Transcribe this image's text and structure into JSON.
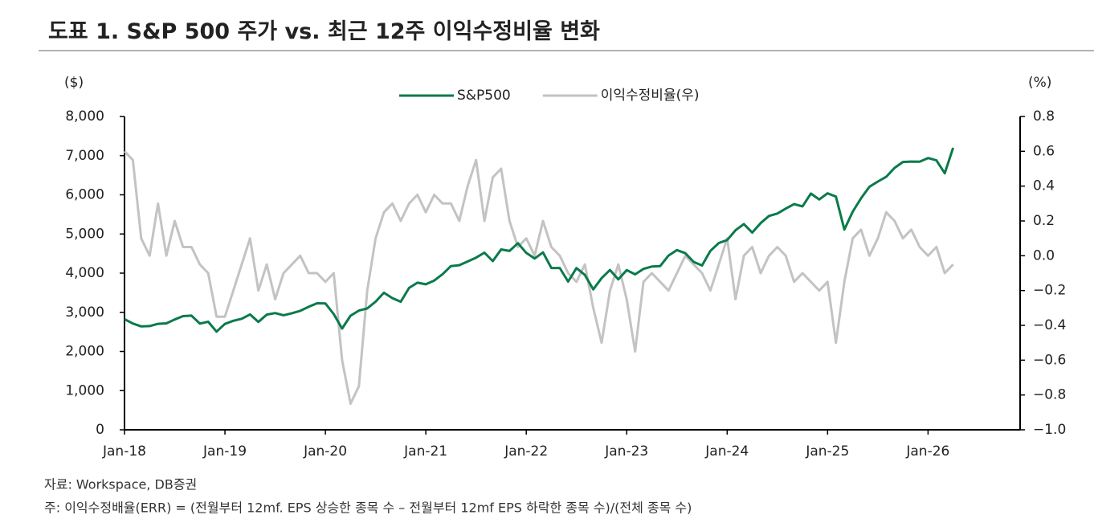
{
  "chart_data": {
    "type": "line",
    "title": "도표 1. S&P 500 주가 vs. 최근 12주 이익수정비율 변화",
    "y_label": "($)",
    "y2_label": "(%)",
    "source": "자료: Workspace, DB증권",
    "note": "주: 이익수정배율(ERR) = (전월부터 12mf. EPS 상승한 종목 수 – 전월부터 12mf EPS 하락한 종목 수)/(전체 종목 수)",
    "x": [
      "2018-01",
      "2018-02",
      "2018-03",
      "2018-04",
      "2018-05",
      "2018-06",
      "2018-07",
      "2018-08",
      "2018-09",
      "2018-10",
      "2018-11",
      "2018-12",
      "2019-01",
      "2019-02",
      "2019-03",
      "2019-04",
      "2019-05",
      "2019-06",
      "2019-07",
      "2019-08",
      "2019-09",
      "2019-10",
      "2019-11",
      "2019-12",
      "2020-01",
      "2020-02",
      "2020-03",
      "2020-04",
      "2020-05",
      "2020-06",
      "2020-07",
      "2020-08",
      "2020-09",
      "2020-10",
      "2020-11",
      "2020-12",
      "2021-01",
      "2021-02",
      "2021-03",
      "2021-04",
      "2021-05",
      "2021-06",
      "2021-07",
      "2021-08",
      "2021-09",
      "2021-10",
      "2021-11",
      "2021-12",
      "2022-01",
      "2022-02",
      "2022-03",
      "2022-04",
      "2022-05",
      "2022-06",
      "2022-07",
      "2022-08",
      "2022-09",
      "2022-10",
      "2022-11",
      "2022-12",
      "2023-01",
      "2023-02",
      "2023-03",
      "2023-04",
      "2023-05",
      "2023-06",
      "2023-07",
      "2023-08",
      "2023-09",
      "2023-10",
      "2023-11",
      "2023-12",
      "2024-01",
      "2024-02",
      "2024-03",
      "2024-04",
      "2024-05",
      "2024-06",
      "2024-07",
      "2024-08",
      "2024-09",
      "2024-10",
      "2024-11",
      "2024-12",
      "2025-01",
      "2025-02",
      "2025-03",
      "2025-04",
      "2025-05",
      "2025-06",
      "2025-07",
      "2025-08",
      "2025-09",
      "2025-10",
      "2025-11",
      "2025-12",
      "2026-01",
      "2026-02",
      "2026-03",
      "2026-04"
    ],
    "xlim": [
      "2018-01",
      "2026-12"
    ],
    "xticks": [
      {
        "value": "2018-01",
        "label": "Jan-18"
      },
      {
        "value": "2019-01",
        "label": "Jan-19"
      },
      {
        "value": "2020-01",
        "label": "Jan-20"
      },
      {
        "value": "2021-01",
        "label": "Jan-21"
      },
      {
        "value": "2022-01",
        "label": "Jan-22"
      },
      {
        "value": "2023-01",
        "label": "Jan-23"
      },
      {
        "value": "2024-01",
        "label": "Jan-24"
      },
      {
        "value": "2025-01",
        "label": "Jan-25"
      },
      {
        "value": "2026-01",
        "label": "Jan-26"
      }
    ],
    "ylim": [
      0,
      8000
    ],
    "yticks": [
      0,
      {
        "value": 1000,
        "label": "1,000"
      },
      {
        "value": 2000,
        "label": "2,000"
      },
      {
        "value": 3000,
        "label": "3,000"
      },
      {
        "value": 4000,
        "label": "4,000"
      },
      {
        "value": 5000,
        "label": "5,000"
      },
      {
        "value": 6000,
        "label": "6,000"
      },
      {
        "value": 7000,
        "label": "7,000"
      },
      {
        "value": 8000,
        "label": "8,000"
      }
    ],
    "y2lim": [
      -1.0,
      0.8
    ],
    "y2ticks": [
      0.8,
      0.6,
      0.4,
      0.2,
      {
        "value": 0,
        "label": "0.0"
      },
      {
        "value": -0.2,
        "label": "−0.2"
      },
      {
        "value": -0.4,
        "label": "−0.4"
      },
      {
        "value": -0.6,
        "label": "−0.6"
      },
      {
        "value": -0.8,
        "label": "−0.8"
      },
      {
        "value": -1.0,
        "label": "−1.0"
      }
    ],
    "legend": "top",
    "series": [
      {
        "name": "S&P500",
        "color": "#0b7a4b",
        "values": [
          2824,
          2714,
          2641,
          2648,
          2705,
          2718,
          2816,
          2902,
          2914,
          2712,
          2760,
          2507,
          2704,
          2784,
          2834,
          2946,
          2752,
          2942,
          2980,
          2926,
          2977,
          3038,
          3141,
          3231,
          3226,
          2954,
          2585,
          2912,
          3044,
          3100,
          3271,
          3500,
          3363,
          3270,
          3622,
          3756,
          3714,
          3811,
          3973,
          4181,
          4204,
          4298,
          4395,
          4523,
          4308,
          4605,
          4567,
          4766,
          4516,
          4374,
          4530,
          4132,
          4132,
          3785,
          4130,
          3955,
          3586,
          3872,
          4080,
          3840,
          4077,
          3970,
          4109,
          4169,
          4180,
          4450,
          4589,
          4508,
          4288,
          4194,
          4568,
          4770,
          4846,
          5096,
          5254,
          5036,
          5278,
          5460,
          5522,
          5648,
          5762,
          5705,
          6032,
          5882,
          6040,
          5955,
          5112,
          5569,
          5912,
          6205,
          6339,
          6460,
          6688,
          6840,
          6849,
          6845,
          6940,
          6880,
          6550,
          7200
        ]
      },
      {
        "name": "이익수정비율(우)",
        "color": "#c3c3c3",
        "axis": "y2",
        "values": [
          0.6,
          0.55,
          0.1,
          0.0,
          0.3,
          0.0,
          0.2,
          0.05,
          0.05,
          -0.05,
          -0.1,
          -0.35,
          -0.35,
          -0.2,
          -0.05,
          0.1,
          -0.2,
          -0.05,
          -0.25,
          -0.1,
          -0.05,
          0.0,
          -0.1,
          -0.1,
          -0.15,
          -0.1,
          -0.6,
          -0.85,
          -0.75,
          -0.2,
          0.1,
          0.25,
          0.3,
          0.2,
          0.3,
          0.35,
          0.25,
          0.35,
          0.3,
          0.3,
          0.2,
          0.4,
          0.55,
          0.2,
          0.45,
          0.5,
          0.2,
          0.05,
          0.1,
          0.0,
          0.2,
          0.05,
          0.0,
          -0.1,
          -0.15,
          -0.05,
          -0.3,
          -0.5,
          -0.2,
          -0.05,
          -0.25,
          -0.55,
          -0.15,
          -0.1,
          -0.15,
          -0.2,
          -0.1,
          0.0,
          -0.05,
          -0.1,
          -0.2,
          -0.05,
          0.1,
          -0.25,
          0.0,
          0.05,
          -0.1,
          0.0,
          0.05,
          0.0,
          -0.15,
          -0.1,
          -0.15,
          -0.2,
          -0.15,
          -0.5,
          -0.15,
          0.1,
          0.15,
          0.0,
          0.1,
          0.25,
          0.2,
          0.1,
          0.15,
          0.05,
          0.0,
          0.05,
          -0.1,
          -0.05
        ]
      }
    ]
  }
}
